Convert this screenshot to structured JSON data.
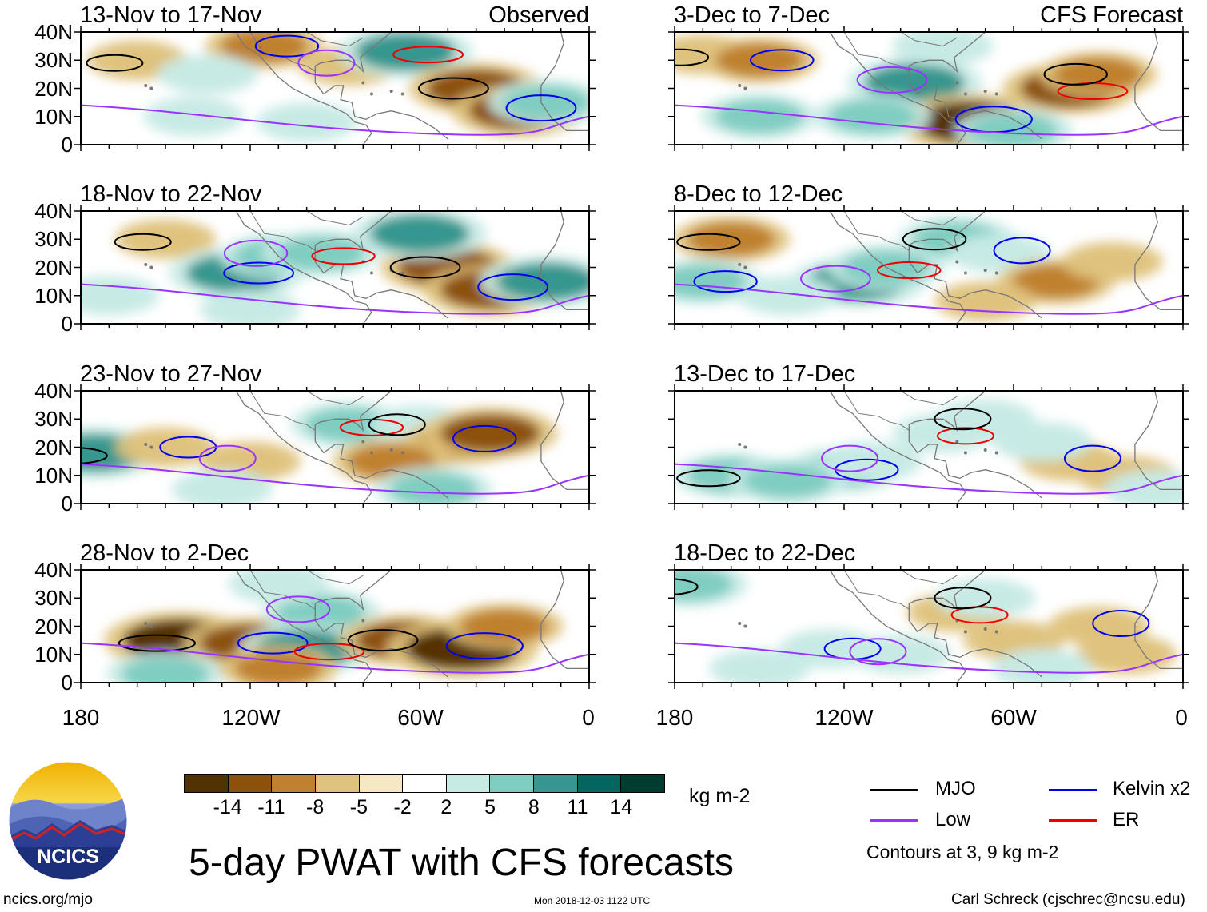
{
  "chart_data": {
    "type": "heatmap",
    "title": "5-day PWAT with CFS forecasts",
    "observed_label": "Observed",
    "forecast_label": "CFS Forecast",
    "y_ticks": [
      "40N",
      "30N",
      "20N",
      "10N",
      "0"
    ],
    "x_ticks": [
      "180",
      "120W",
      "60W",
      "0"
    ],
    "ylim": [
      0,
      40
    ],
    "xlim": [
      -180,
      0
    ],
    "colorbar": {
      "units": "kg m-2",
      "labels": [
        "-14",
        "-11",
        "-8",
        "-5",
        "-2",
        "2",
        "5",
        "8",
        "11",
        "14"
      ],
      "colors": [
        "#543005",
        "#8c510a",
        "#bf812d",
        "#dfc27d",
        "#f6e8c3",
        "#ffffff",
        "#c7eae5",
        "#80cdc1",
        "#35978f",
        "#01665e",
        "#003c30"
      ]
    },
    "panels": [
      {
        "title": "13-Nov to 17-Nov",
        "column": "observed",
        "blobs": [
          [
            -160,
            30,
            -5
          ],
          [
            -115,
            35,
            -8
          ],
          [
            -85,
            28,
            -5
          ],
          [
            -65,
            33,
            11
          ],
          [
            -40,
            20,
            -11
          ],
          [
            -25,
            12,
            -11
          ],
          [
            -140,
            10,
            5
          ],
          [
            -100,
            8,
            5
          ],
          [
            -135,
            25,
            5
          ],
          [
            -15,
            15,
            8
          ]
        ]
      },
      {
        "title": "18-Nov to 22-Nov",
        "column": "observed",
        "blobs": [
          [
            -150,
            30,
            -5
          ],
          [
            -125,
            18,
            11
          ],
          [
            -110,
            24,
            8
          ],
          [
            -95,
            25,
            8
          ],
          [
            -50,
            20,
            -11
          ],
          [
            -35,
            12,
            -11
          ],
          [
            -60,
            32,
            11
          ],
          [
            -15,
            15,
            11
          ],
          [
            -120,
            5,
            5
          ],
          [
            -170,
            10,
            5
          ]
        ]
      },
      {
        "title": "23-Nov to 27-Nov",
        "column": "observed",
        "blobs": [
          [
            -175,
            18,
            11
          ],
          [
            -150,
            20,
            -5
          ],
          [
            -120,
            15,
            -5
          ],
          [
            -85,
            28,
            8
          ],
          [
            -60,
            28,
            5
          ],
          [
            -45,
            22,
            -8
          ],
          [
            -35,
            25,
            -11
          ],
          [
            -70,
            15,
            -8
          ],
          [
            -130,
            5,
            5
          ],
          [
            -55,
            5,
            8
          ]
        ]
      },
      {
        "title": "28-Nov to 2-Dec",
        "column": "observed",
        "blobs": [
          [
            -145,
            15,
            -14
          ],
          [
            -120,
            14,
            -11
          ],
          [
            -95,
            25,
            8
          ],
          [
            -100,
            12,
            11
          ],
          [
            -65,
            15,
            -11
          ],
          [
            -45,
            12,
            -14
          ],
          [
            -30,
            20,
            -8
          ],
          [
            -110,
            35,
            5
          ],
          [
            -150,
            3,
            8
          ],
          [
            -110,
            5,
            -8
          ]
        ]
      },
      {
        "title": "3-Dec to 7-Dec",
        "column": "forecast",
        "blobs": [
          [
            -170,
            32,
            -5
          ],
          [
            -150,
            30,
            -8
          ],
          [
            -95,
            22,
            11
          ],
          [
            -40,
            20,
            -11
          ],
          [
            -30,
            25,
            -8
          ],
          [
            -75,
            8,
            -14
          ],
          [
            -150,
            10,
            8
          ],
          [
            -110,
            10,
            8
          ],
          [
            -85,
            35,
            5
          ],
          [
            -60,
            5,
            8
          ]
        ]
      },
      {
        "title": "8-Dec to 12-Dec",
        "column": "forecast",
        "blobs": [
          [
            -160,
            30,
            -8
          ],
          [
            -170,
            15,
            8
          ],
          [
            -115,
            15,
            11
          ],
          [
            -105,
            20,
            8
          ],
          [
            -80,
            30,
            8
          ],
          [
            -65,
            25,
            5
          ],
          [
            -45,
            15,
            -8
          ],
          [
            -25,
            22,
            -5
          ],
          [
            -70,
            8,
            -5
          ],
          [
            -140,
            10,
            5
          ]
        ]
      },
      {
        "title": "13-Dec to 17-Dec",
        "column": "forecast",
        "blobs": [
          [
            -160,
            10,
            8
          ],
          [
            -120,
            12,
            8
          ],
          [
            -110,
            15,
            5
          ],
          [
            -85,
            25,
            5
          ],
          [
            -70,
            30,
            5
          ],
          [
            -40,
            15,
            -5
          ],
          [
            -20,
            10,
            -5
          ],
          [
            -10,
            5,
            5
          ],
          [
            -140,
            8,
            8
          ],
          [
            -50,
            22,
            5
          ]
        ]
      },
      {
        "title": "18-Dec to 22-Dec",
        "column": "forecast",
        "blobs": [
          [
            -175,
            35,
            8
          ],
          [
            -125,
            12,
            5
          ],
          [
            -100,
            10,
            5
          ],
          [
            -80,
            25,
            -5
          ],
          [
            -70,
            30,
            5
          ],
          [
            -30,
            20,
            -5
          ],
          [
            -20,
            10,
            -5
          ],
          [
            -60,
            15,
            -5
          ],
          [
            -150,
            5,
            5
          ],
          [
            -50,
            5,
            5
          ]
        ]
      }
    ],
    "legend": [
      {
        "name": "MJO",
        "color": "#000000"
      },
      {
        "name": "Kelvin x2",
        "color": "#0000ee"
      },
      {
        "name": "Low",
        "color": "#9933ff"
      },
      {
        "name": "ER",
        "color": "#ee0000"
      }
    ],
    "contours_note": "Contours at 3, 9 kg m-2"
  },
  "footer": {
    "site": "ncics.org/mjo",
    "timestamp": "Mon 2018-12-03 1122 UTC",
    "author": "Carl Schreck (cjschrec@ncsu.edu)",
    "logo_text": "NCICS"
  }
}
